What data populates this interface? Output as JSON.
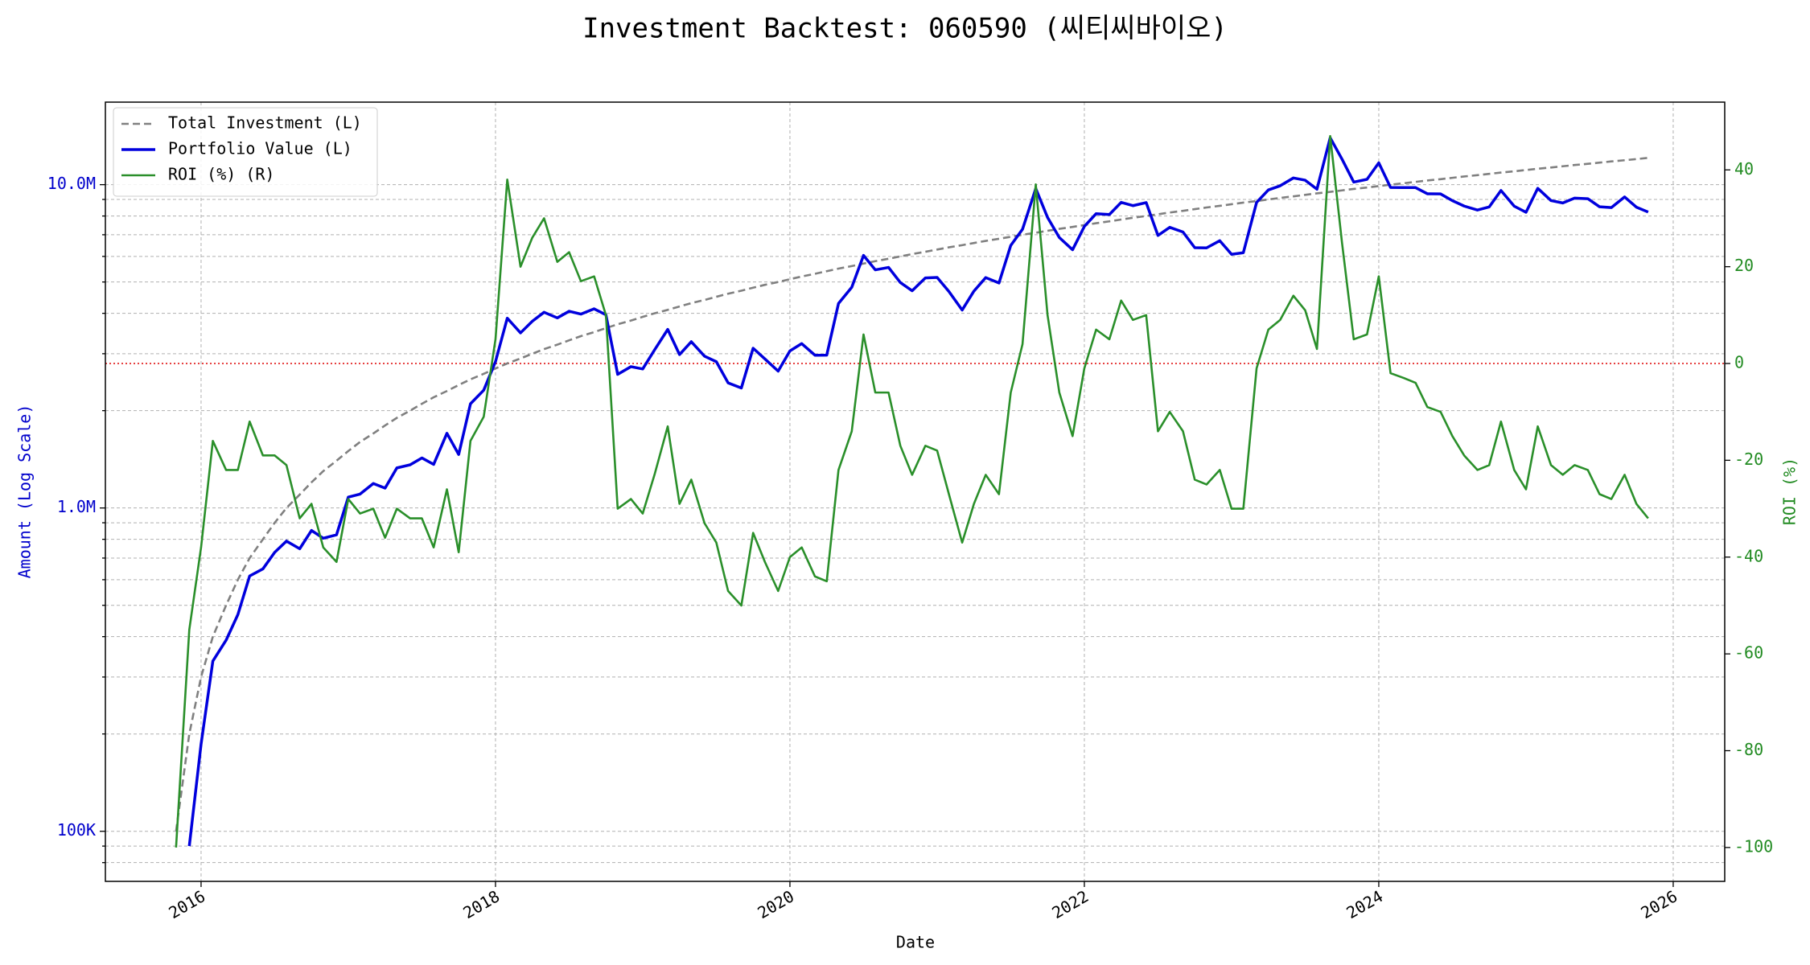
{
  "chart_data": {
    "type": "line",
    "title": "Investment Backtest: 060590 (씨티씨바이오)",
    "xlabel": "Date",
    "ylabel": "Amount (Log Scale)",
    "y2label": "ROI (%)",
    "y_color": "#0000cc",
    "y2_color": "#228b22",
    "xlim": [
      2015.35,
      2026.35
    ],
    "xticks": [
      2016,
      2018,
      2020,
      2022,
      2024,
      2026
    ],
    "ylog": true,
    "ylim": [
      70000,
      18000000
    ],
    "yticks": [
      {
        "value": 100000,
        "label": "100K"
      },
      {
        "value": 1000000,
        "label": "1.0M"
      },
      {
        "value": 10000000,
        "label": "10.0M"
      }
    ],
    "yminorticks": [
      80000,
      90000,
      200000,
      300000,
      400000,
      500000,
      600000,
      700000,
      800000,
      900000,
      2000000,
      3000000,
      4000000,
      5000000,
      6000000,
      7000000,
      8000000,
      9000000
    ],
    "y2lim": [
      -107,
      54
    ],
    "y2ticks": [
      -100,
      -80,
      -60,
      -40,
      -20,
      0,
      20,
      40
    ],
    "grid": true,
    "legend": "upper left",
    "hline": {
      "value": 0,
      "axis": "y2",
      "color": "#dd0000"
    },
    "x": [
      2015.83,
      2015.92,
      2016.0,
      2016.08,
      2016.17,
      2016.25,
      2016.33,
      2016.42,
      2016.5,
      2016.58,
      2016.67,
      2016.75,
      2016.83,
      2016.92,
      2017.0,
      2017.08,
      2017.17,
      2017.25,
      2017.33,
      2017.42,
      2017.5,
      2017.58,
      2017.67,
      2017.75,
      2017.83,
      2017.92,
      2018.0,
      2018.08,
      2018.17,
      2018.25,
      2018.33,
      2018.42,
      2018.5,
      2018.58,
      2018.67,
      2018.75,
      2018.83,
      2018.92,
      2019.0,
      2019.08,
      2019.17,
      2019.25,
      2019.33,
      2019.42,
      2019.5,
      2019.58,
      2019.67,
      2019.75,
      2019.83,
      2019.92,
      2020.0,
      2020.08,
      2020.17,
      2020.25,
      2020.33,
      2020.42,
      2020.5,
      2020.58,
      2020.67,
      2020.75,
      2020.83,
      2020.92,
      2021.0,
      2021.08,
      2021.17,
      2021.25,
      2021.33,
      2021.42,
      2021.5,
      2021.58,
      2021.67,
      2021.75,
      2021.83,
      2021.92,
      2022.0,
      2022.08,
      2022.17,
      2022.25,
      2022.33,
      2022.42,
      2022.5,
      2022.58,
      2022.67,
      2022.75,
      2022.83,
      2022.92,
      2023.0,
      2023.08,
      2023.17,
      2023.25,
      2023.33,
      2023.42,
      2023.5,
      2023.58,
      2023.67,
      2023.75,
      2023.83,
      2023.92,
      2024.0,
      2024.08,
      2024.17,
      2024.25,
      2024.33,
      2024.42,
      2024.5,
      2024.58,
      2024.67,
      2024.75,
      2024.83,
      2024.92,
      2025.0,
      2025.08,
      2025.17,
      2025.25,
      2025.33,
      2025.42,
      2025.5,
      2025.58,
      2025.67,
      2025.75,
      2025.83
    ],
    "series": [
      {
        "name": "Total Investment (L)",
        "color": "#808080",
        "dash": true,
        "values": [
          100000,
          200000,
          300000,
          400000,
          500000,
          600000,
          700000,
          800000,
          900000,
          1000000,
          1100000,
          1200000,
          1300000,
          1400000,
          1500000,
          1600000,
          1700000,
          1800000,
          1900000,
          2000000,
          2100000,
          2200000,
          2300000,
          2400000,
          2500000,
          2600000,
          2700000,
          2800000,
          2900000,
          3000000,
          3100000,
          3200000,
          3300000,
          3400000,
          3500000,
          3600000,
          3700000,
          3800000,
          3900000,
          4000000,
          4100000,
          4200000,
          4300000,
          4400000,
          4500000,
          4600000,
          4700000,
          4800000,
          4900000,
          5000000,
          5100000,
          5200000,
          5300000,
          5400000,
          5500000,
          5600000,
          5700000,
          5800000,
          5900000,
          6000000,
          6100000,
          6200000,
          6300000,
          6400000,
          6500000,
          6600000,
          6700000,
          6800000,
          6900000,
          7000000,
          7100000,
          7200000,
          7300000,
          7400000,
          7500000,
          7600000,
          7700000,
          7800000,
          7900000,
          8000000,
          8100000,
          8200000,
          8300000,
          8400000,
          8500000,
          8600000,
          8700000,
          8800000,
          8900000,
          9000000,
          9100000,
          9200000,
          9300000,
          9400000,
          9500000,
          9600000,
          9700000,
          9800000,
          9900000,
          10000000,
          10100000,
          10200000,
          10300000,
          10400000,
          10500000,
          10600000,
          10700000,
          10800000,
          10900000,
          11000000,
          11100000,
          11200000,
          11300000,
          11400000,
          11500000,
          11600000,
          11700000,
          11800000,
          11900000,
          12000000,
          12100000
        ]
      },
      {
        "name": "Portfolio Value (L)",
        "color": "#0000dd",
        "values": [
          null,
          90000,
          186000,
          336000,
          390000,
          468000,
          616000,
          648000,
          729000,
          790000,
          748000,
          852000,
          806000,
          826000,
          1080000,
          1104000,
          1190000,
          1152000,
          1330000,
          1360000,
          1428000,
          1364000,
          1702000,
          1464000,
          2100000,
          2314000,
          2835000,
          3864000,
          3480000,
          3780000,
          4030000,
          3872000,
          4059000,
          3978000,
          4130000,
          3960000,
          2590000,
          2736000,
          2691000,
          3080000,
          3567000,
          2982000,
          3268000,
          2948000,
          2835000,
          2438000,
          2350000,
          3120000,
          2891000,
          2650000,
          3060000,
          3224000,
          2968000,
          2970000,
          4290000,
          4816000,
          6042000,
          5452000,
          5546000,
          4980000,
          4697000,
          5146000,
          5166000,
          4672000,
          4095000,
          4686000,
          5159000,
          4964000,
          6486000,
          7280000,
          9727000,
          7920000,
          6862000,
          6290000,
          7425000,
          8132000,
          8085000,
          8814000,
          8611000,
          8800000,
          6966000,
          7380000,
          7138000,
          6384000,
          6375000,
          6708000,
          6090000,
          6160000,
          8811000,
          9630000,
          9919000,
          10488000,
          10323000,
          9682000,
          13965000,
          12000000,
          10185000,
          10388000,
          11682000,
          9800000,
          9797000,
          9792000,
          9373000,
          9360000,
          8925000,
          8586000,
          8346000,
          8532000,
          9592000,
          8580000,
          8214000,
          9744000,
          8927000,
          8778000,
          9085000,
          9048000,
          8541000,
          8496000,
          9163000,
          8520000,
          8228000
        ]
      },
      {
        "name": "ROI (%) (R)",
        "color": "#2a8f2a",
        "axis": "y2",
        "values": [
          -100,
          -55,
          -38,
          -16,
          -22,
          -22,
          -12,
          -19,
          -19,
          -21,
          -32,
          -29,
          -38,
          -41,
          -28,
          -31,
          -30,
          -36,
          -30,
          -32,
          -32,
          -38,
          -26,
          -39,
          -16,
          -11,
          5,
          38,
          20,
          26,
          30,
          21,
          23,
          17,
          18,
          10,
          -30,
          -28,
          -31,
          -23,
          -13,
          -29,
          -24,
          -33,
          -37,
          -47,
          -50,
          -35,
          -41,
          -47,
          -40,
          -38,
          -44,
          -45,
          -22,
          -14,
          6,
          -6,
          -6,
          -17,
          -23,
          -17,
          -18,
          -27,
          -37,
          -29,
          -23,
          -27,
          -6,
          4,
          37,
          10,
          -6,
          -15,
          -1,
          7,
          5,
          13,
          9,
          10,
          -14,
          -10,
          -14,
          -24,
          -25,
          -22,
          -30,
          -30,
          -1,
          7,
          9,
          14,
          11,
          3,
          47,
          25,
          5,
          6,
          18,
          -2,
          -3,
          -4,
          -9,
          -10,
          -15,
          -19,
          -22,
          -21,
          -12,
          -22,
          -26,
          -13,
          -21,
          -23,
          -21,
          -22,
          -27,
          -28,
          -23,
          -29,
          -32
        ]
      }
    ]
  }
}
